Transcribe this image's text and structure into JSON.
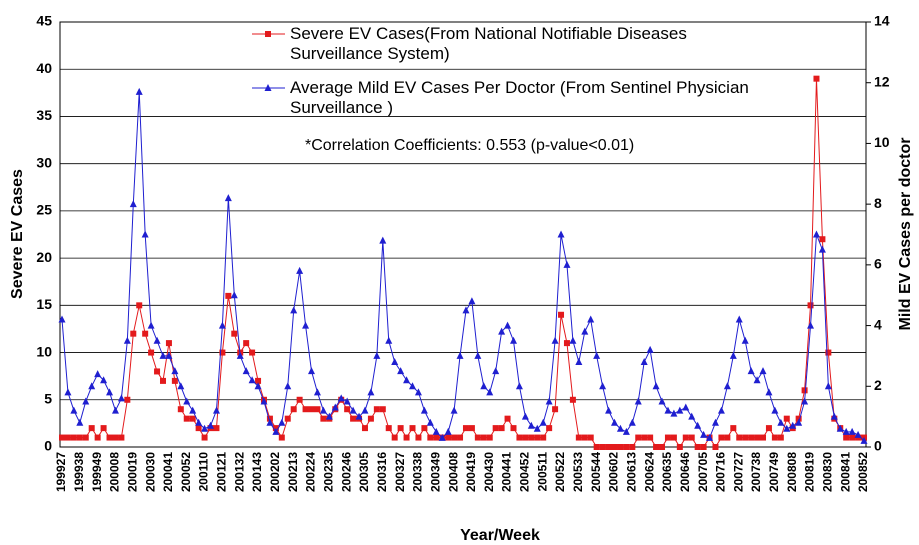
{
  "chart_data": {
    "type": "line",
    "annotation": "*Correlation Coefficients: 0.553 (p-value<0.01)",
    "x_label": "Year/Week",
    "y_label": "Severe EV Cases",
    "y2_label": "Mild EV Cases per doctor",
    "categories": [
      "199927",
      null,
      null,
      "199938",
      null,
      null,
      "199949",
      null,
      null,
      "200008",
      null,
      null,
      "200019",
      null,
      null,
      "200030",
      null,
      null,
      "200041",
      null,
      null,
      "200052",
      null,
      null,
      "200110",
      null,
      null,
      "200121",
      null,
      null,
      "200132",
      null,
      null,
      "200143",
      null,
      null,
      "200202",
      null,
      null,
      "200213",
      null,
      null,
      "200224",
      null,
      null,
      "200235",
      null,
      null,
      "200246",
      null,
      null,
      "200305",
      null,
      null,
      "200316",
      null,
      null,
      "200327",
      null,
      null,
      "200338",
      null,
      null,
      "200349",
      null,
      null,
      "200408",
      null,
      null,
      "200419",
      null,
      null,
      "200430",
      null,
      null,
      "200441",
      null,
      null,
      "200452",
      null,
      null,
      "200511",
      null,
      null,
      "200522",
      null,
      null,
      "200533",
      null,
      null,
      "200544",
      null,
      null,
      "200602",
      null,
      null,
      "200613",
      null,
      null,
      "200624",
      null,
      null,
      "200635",
      null,
      null,
      "200646",
      null,
      null,
      "200705",
      null,
      null,
      "200716",
      null,
      null,
      "200727",
      null,
      null,
      "200738",
      null,
      null,
      "200749",
      null,
      null,
      "200808",
      null,
      null,
      "200819",
      null,
      null,
      "200830",
      null,
      null,
      "200841",
      null,
      null,
      "200852"
    ],
    "series": [
      {
        "name": "Severe EV Cases(From National Notifiable Diseases Surveillance System)",
        "color": "#e31a1c",
        "marker": "square",
        "values": [
          1,
          1,
          1,
          1,
          1,
          2,
          1,
          2,
          1,
          1,
          1,
          5,
          12,
          15,
          12,
          10,
          8,
          7,
          11,
          7,
          4,
          3,
          3,
          2,
          1,
          2,
          2,
          10,
          16,
          12,
          10,
          11,
          10,
          7,
          5,
          3,
          2,
          1,
          3,
          4,
          5,
          4,
          4,
          4,
          3,
          3,
          4,
          5,
          4,
          3,
          3,
          2,
          3,
          4,
          4,
          2,
          1,
          2,
          1,
          2,
          1,
          2,
          1,
          1,
          1,
          1,
          1,
          1,
          2,
          2,
          1,
          1,
          1,
          2,
          2,
          3,
          2,
          1,
          1,
          1,
          1,
          1,
          2,
          4,
          14,
          11,
          5,
          1,
          1,
          1,
          0,
          0,
          0,
          0,
          0,
          0,
          0,
          1,
          1,
          1,
          0,
          0,
          1,
          1,
          0,
          1,
          1,
          0,
          0,
          1,
          0,
          1,
          1,
          2,
          1,
          1,
          1,
          1,
          1,
          2,
          1,
          1,
          3,
          2,
          3,
          6,
          15,
          39,
          22,
          10,
          3,
          2,
          1,
          1,
          1,
          1
        ]
      },
      {
        "name": "Average Mild EV Cases Per Doctor (From Sentinel Physician Surveillance )",
        "color": "#1f1fd0",
        "marker": "triangle",
        "axis": "y2",
        "values": [
          4.2,
          1.8,
          1.2,
          0.8,
          1.5,
          2.0,
          2.4,
          2.2,
          1.8,
          1.2,
          1.6,
          3.5,
          8,
          11.7,
          7,
          4,
          3.5,
          3,
          3,
          2.5,
          2,
          1.5,
          1.2,
          0.8,
          0.6,
          0.7,
          1.2,
          4,
          8.2,
          5,
          3,
          2.5,
          2.2,
          2,
          1.5,
          0.8,
          0.5,
          0.8,
          2,
          4.5,
          5.8,
          4,
          2.5,
          1.8,
          1.2,
          1,
          1.3,
          1.6,
          1.5,
          1.2,
          1,
          1.2,
          1.8,
          3,
          6.8,
          3.5,
          2.8,
          2.5,
          2.2,
          2,
          1.8,
          1.2,
          0.8,
          0.5,
          0.3,
          0.5,
          1.2,
          3,
          4.5,
          4.8,
          3,
          2,
          1.8,
          2.5,
          3.8,
          4,
          3.5,
          2,
          1,
          0.7,
          0.6,
          0.8,
          1.5,
          3.5,
          7,
          6,
          3.5,
          2.8,
          3.8,
          4.2,
          3,
          2,
          1.2,
          0.8,
          0.6,
          0.5,
          0.8,
          1.5,
          2.8,
          3.2,
          2,
          1.5,
          1.2,
          1.1,
          1.2,
          1.3,
          1,
          0.7,
          0.4,
          0.3,
          0.8,
          1.2,
          2,
          3,
          4.2,
          3.5,
          2.5,
          2.2,
          2.5,
          1.8,
          1.2,
          0.8,
          0.6,
          0.7,
          0.8,
          1.5,
          4,
          7,
          6.5,
          2,
          1,
          0.6,
          0.5,
          0.5,
          0.4,
          0.2
        ]
      }
    ],
    "ylim": [
      0,
      45
    ],
    "yticks": [
      0,
      5,
      10,
      15,
      20,
      25,
      30,
      35,
      40,
      45
    ],
    "y2lim": [
      0,
      14
    ],
    "y2ticks": [
      0,
      2,
      4,
      6,
      8,
      10,
      12,
      14
    ],
    "grid": true
  }
}
